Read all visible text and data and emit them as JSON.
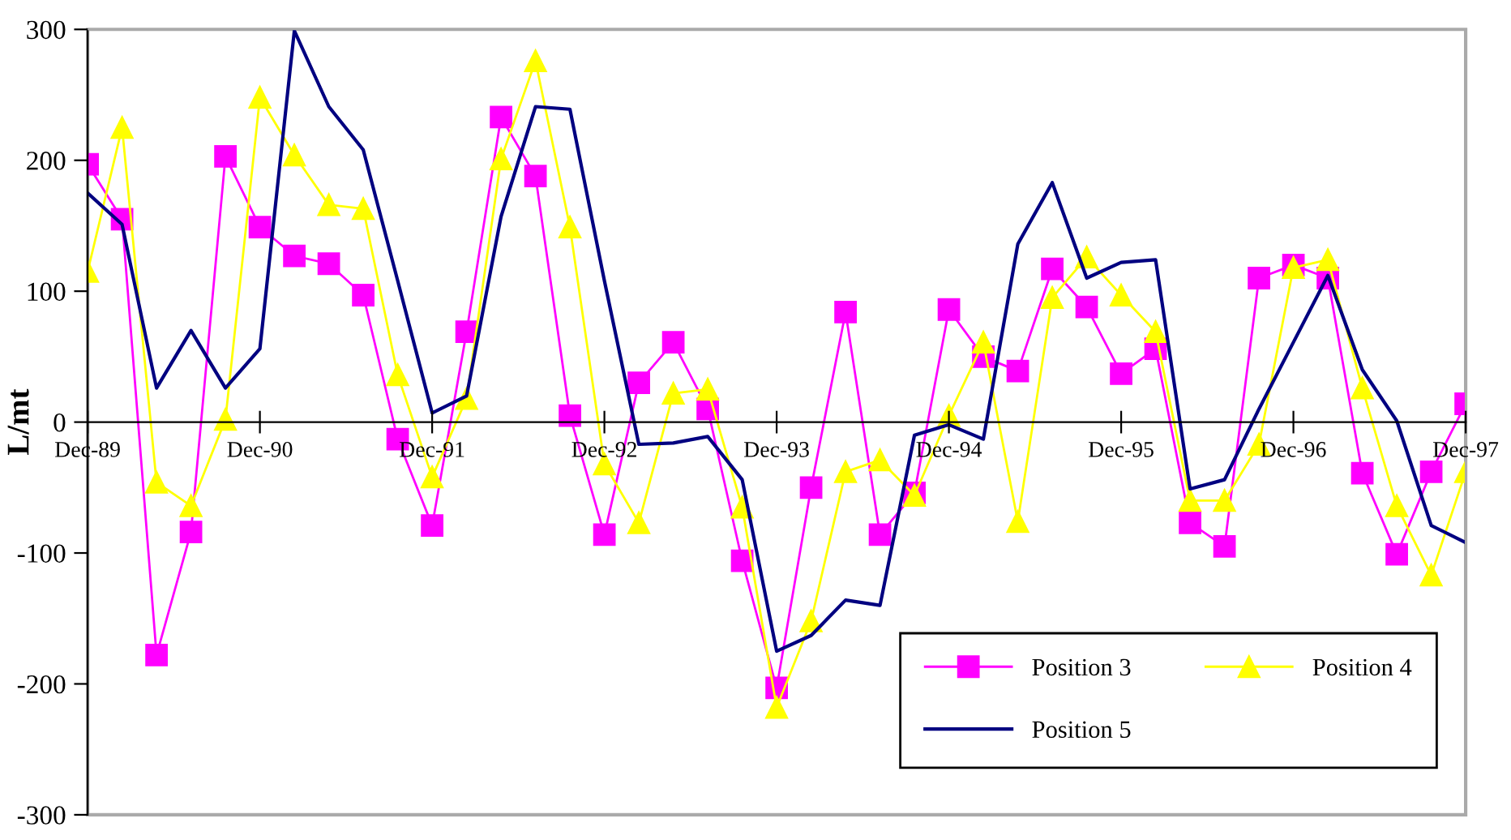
{
  "chart_data": {
    "type": "line",
    "ylabel": "L/mt",
    "categories": [
      "Dec-89",
      null,
      null,
      null,
      null,
      "Dec-90",
      null,
      null,
      null,
      null,
      "Dec-91",
      null,
      null,
      null,
      null,
      "Dec-92",
      null,
      null,
      null,
      null,
      "Dec-93",
      null,
      null,
      null,
      null,
      "Dec-94",
      null,
      null,
      null,
      null,
      "Dec-95",
      null,
      null,
      null,
      null,
      "Dec-96",
      null,
      null,
      null,
      null,
      "Dec-97"
    ],
    "series": [
      {
        "name": "Position 3",
        "color": "#ff00ff",
        "marker": "square",
        "values": [
          197,
          155,
          -178,
          -84,
          203,
          149,
          127,
          121,
          97,
          -13,
          -79,
          69,
          233,
          188,
          5,
          -86,
          30,
          61,
          10,
          -106,
          -203,
          -50,
          84,
          -86,
          -54,
          86,
          50,
          39,
          117,
          88,
          37,
          56,
          -77,
          -95,
          110,
          120,
          110,
          -39,
          -101,
          -38,
          14
        ]
      },
      {
        "name": "Position 4",
        "color": "#ffff00",
        "marker": "triangle",
        "values": [
          115,
          225,
          -46,
          -64,
          2,
          248,
          204,
          166,
          163,
          36,
          -42,
          18,
          201,
          276,
          149,
          -32,
          -77,
          22,
          25,
          -65,
          -218,
          -152,
          -38,
          -29,
          -56,
          5,
          61,
          -76,
          95,
          126,
          97,
          69,
          -60,
          -60,
          -17,
          118,
          124,
          26,
          -64,
          -117,
          -38
        ]
      },
      {
        "name": "Position 5",
        "color": "#000080",
        "marker": "none",
        "values": [
          175,
          151,
          26,
          70,
          26,
          56,
          299,
          241,
          208,
          108,
          7,
          20,
          157,
          241,
          239,
          108,
          -17,
          -16,
          -11,
          -44,
          -175,
          -163,
          -136,
          -140,
          -10,
          -2,
          -13,
          136,
          183,
          110,
          122,
          124,
          -51,
          -44,
          10,
          61,
          112,
          40,
          1,
          -79,
          -92
        ]
      }
    ],
    "ylim": [
      -300,
      300
    ],
    "yticks": [
      -300,
      -200,
      -100,
      0,
      100,
      200,
      300
    ],
    "grid": false,
    "legend": "bottom right",
    "line_style": "solid"
  }
}
